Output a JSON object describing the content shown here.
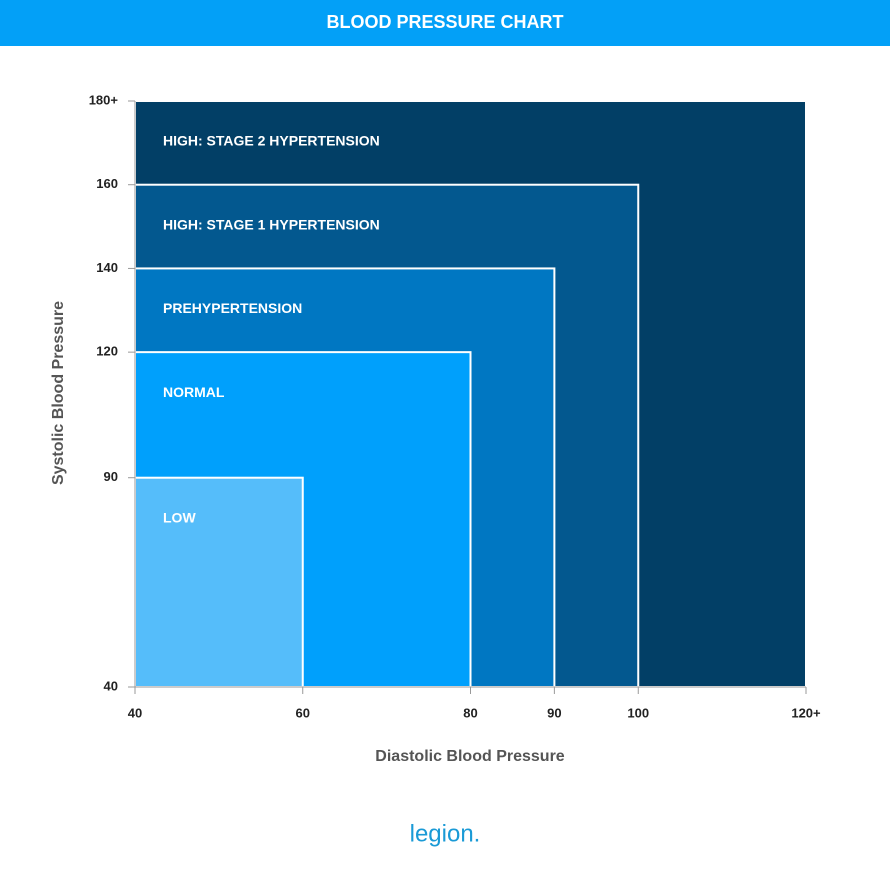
{
  "chart_data": {
    "type": "zones",
    "title": "BLOOD PRESSURE CHART",
    "x_label": "Diastolic Blood Pressure",
    "y_label": "Systolic Blood Pressure",
    "series": [
      {
        "name": "LOW",
        "color": "#55bdfa",
        "x": 60,
        "y": 90
      },
      {
        "name": "NORMAL",
        "color": "#00a0fc",
        "x": 80,
        "y": 120
      },
      {
        "name": "PREHYPERTENSION",
        "color": "#0077c2",
        "x": 90,
        "y": 140
      },
      {
        "name": "HIGH: STAGE 1 HYPERTENSION",
        "color": "#03588f",
        "x": 100,
        "y": 160
      },
      {
        "name": "HIGH: STAGE 2 HYPERTENSION",
        "color": "#023f66",
        "x": 120,
        "y": 180
      }
    ],
    "xlim": [
      40,
      120
    ],
    "ylim": [
      40,
      180
    ],
    "xticks": [
      40,
      60,
      80,
      90,
      100,
      {
        "value": 120,
        "label": "120+"
      }
    ],
    "yticks": [
      40,
      90,
      120,
      140,
      160,
      {
        "value": 180,
        "label": "180+"
      }
    ],
    "logo": "legion."
  }
}
